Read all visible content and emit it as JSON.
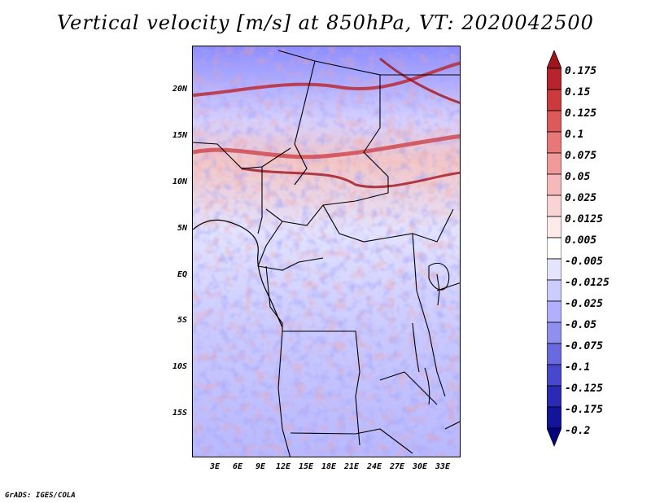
{
  "title": "Vertical velocity [m/s] at 850hPa, VT: 2020042500",
  "credit": "GrADS: IGES/COLA",
  "lat_labels": [
    "20N",
    "15N",
    "10N",
    "5N",
    "EQ",
    "5S",
    "10S",
    "15S"
  ],
  "lon_labels": [
    "3E",
    "6E",
    "9E",
    "12E",
    "15E",
    "18E",
    "21E",
    "24E",
    "27E",
    "30E",
    "33E"
  ],
  "colorbar": {
    "labels": [
      "0.175",
      "0.15",
      "0.125",
      "0.1",
      "0.075",
      "0.05",
      "0.025",
      "0.0125",
      "0.005",
      "-0.005",
      "-0.0125",
      "-0.025",
      "-0.05",
      "-0.075",
      "-0.1",
      "-0.125",
      "-0.175",
      "-0.2"
    ],
    "colors": [
      "#a0141e",
      "#b8242c",
      "#cc3a3e",
      "#dd5a5a",
      "#e87878",
      "#f09a9a",
      "#f6b9b9",
      "#fad4d4",
      "#fdeaea",
      "#ffffff",
      "#e4e4ff",
      "#ccccff",
      "#b0b0ff",
      "#8f8ff0",
      "#6a6ae0",
      "#4848cc",
      "#2a2ab4",
      "#14149a",
      "#000080"
    ]
  }
}
